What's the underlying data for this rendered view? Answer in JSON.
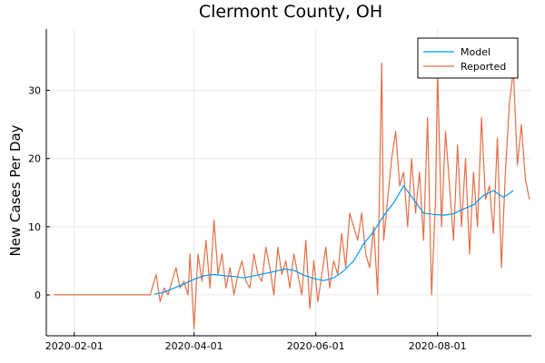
{
  "chart_data": {
    "type": "line",
    "title": "Clermont County, OH",
    "xlabel": "",
    "ylabel": "New Cases Per Day",
    "x_start": "2020-01-18",
    "x_end": "2020-09-17",
    "xlim": [
      "2020-01-18",
      "2020-09-17"
    ],
    "ylim": [
      -6,
      39
    ],
    "x_ticks": [
      "2020-02-01",
      "2020-04-01",
      "2020-06-01",
      "2020-08-01"
    ],
    "y_ticks": [
      0,
      10,
      20,
      30
    ],
    "grid": true,
    "legend_position": "top-right",
    "series": [
      {
        "name": "Model",
        "color": "#009AFA",
        "x": [
          "2020-03-12",
          "2020-03-17",
          "2020-03-22",
          "2020-03-27",
          "2020-04-01",
          "2020-04-06",
          "2020-04-11",
          "2020-04-16",
          "2020-04-21",
          "2020-04-26",
          "2020-05-01",
          "2020-05-06",
          "2020-05-11",
          "2020-05-16",
          "2020-05-21",
          "2020-05-26",
          "2020-05-31",
          "2020-06-05",
          "2020-06-10",
          "2020-06-15",
          "2020-06-20",
          "2020-06-25",
          "2020-06-30",
          "2020-07-05",
          "2020-07-10",
          "2020-07-15",
          "2020-07-20",
          "2020-07-25",
          "2020-07-30",
          "2020-08-04",
          "2020-08-09",
          "2020-08-14",
          "2020-08-19",
          "2020-08-24",
          "2020-08-29",
          "2020-09-03",
          "2020-09-08"
        ],
        "y": [
          0.1,
          0.4,
          1.0,
          1.6,
          2.3,
          2.8,
          3.0,
          2.8,
          2.7,
          2.5,
          2.8,
          3.1,
          3.4,
          3.8,
          3.6,
          2.9,
          2.4,
          2.1,
          2.5,
          3.5,
          5.0,
          7.5,
          9.3,
          11.6,
          13.5,
          16.0,
          14.0,
          12.0,
          11.8,
          11.7,
          11.9,
          12.6,
          13.2,
          14.6,
          15.3,
          14.3,
          15.3
        ]
      },
      {
        "name": "Reported",
        "color": "#E26F46",
        "x": [
          "2020-01-22",
          "2020-03-10",
          "2020-03-13",
          "2020-03-15",
          "2020-03-17",
          "2020-03-19",
          "2020-03-21",
          "2020-03-23",
          "2020-03-25",
          "2020-03-27",
          "2020-03-29",
          "2020-03-30",
          "2020-04-01",
          "2020-04-03",
          "2020-04-05",
          "2020-04-07",
          "2020-04-09",
          "2020-04-11",
          "2020-04-13",
          "2020-04-15",
          "2020-04-17",
          "2020-04-19",
          "2020-04-21",
          "2020-04-23",
          "2020-04-25",
          "2020-04-27",
          "2020-04-29",
          "2020-05-01",
          "2020-05-03",
          "2020-05-05",
          "2020-05-07",
          "2020-05-09",
          "2020-05-11",
          "2020-05-13",
          "2020-05-15",
          "2020-05-17",
          "2020-05-19",
          "2020-05-21",
          "2020-05-23",
          "2020-05-25",
          "2020-05-27",
          "2020-05-29",
          "2020-05-31",
          "2020-06-02",
          "2020-06-04",
          "2020-06-06",
          "2020-06-08",
          "2020-06-10",
          "2020-06-12",
          "2020-06-14",
          "2020-06-16",
          "2020-06-18",
          "2020-06-20",
          "2020-06-22",
          "2020-06-24",
          "2020-06-26",
          "2020-06-28",
          "2020-06-30",
          "2020-07-02",
          "2020-07-04",
          "2020-07-05",
          "2020-07-07",
          "2020-07-09",
          "2020-07-11",
          "2020-07-13",
          "2020-07-15",
          "2020-07-17",
          "2020-07-19",
          "2020-07-21",
          "2020-07-23",
          "2020-07-25",
          "2020-07-27",
          "2020-07-29",
          "2020-07-31",
          "2020-08-01",
          "2020-08-03",
          "2020-08-05",
          "2020-08-07",
          "2020-08-09",
          "2020-08-11",
          "2020-08-13",
          "2020-08-15",
          "2020-08-17",
          "2020-08-19",
          "2020-08-21",
          "2020-08-23",
          "2020-08-25",
          "2020-08-27",
          "2020-08-29",
          "2020-08-31",
          "2020-09-02",
          "2020-09-04",
          "2020-09-06",
          "2020-09-08",
          "2020-09-10",
          "2020-09-12",
          "2020-09-14",
          "2020-09-16"
        ],
        "y": [
          0,
          0,
          3,
          -1,
          1,
          0,
          2,
          4,
          1,
          2,
          0,
          6,
          -5,
          6,
          2,
          8,
          1,
          11,
          3,
          6,
          1,
          4,
          0,
          3,
          5,
          2,
          1,
          6,
          3,
          2,
          7,
          4,
          0,
          7,
          3,
          5,
          1,
          6,
          3,
          0,
          8,
          -2,
          5,
          -1,
          3,
          7,
          1,
          5,
          3,
          9,
          4,
          12,
          10,
          8,
          12,
          6,
          4,
          10,
          0,
          34,
          8,
          14,
          20,
          24,
          16,
          18,
          10,
          20,
          12,
          18,
          8,
          26,
          0,
          14,
          33,
          10,
          24,
          16,
          8,
          22,
          10,
          20,
          6,
          18,
          10,
          26,
          14,
          16,
          9,
          23,
          4,
          18,
          28,
          33,
          19,
          25,
          17,
          14
        ]
      }
    ]
  }
}
